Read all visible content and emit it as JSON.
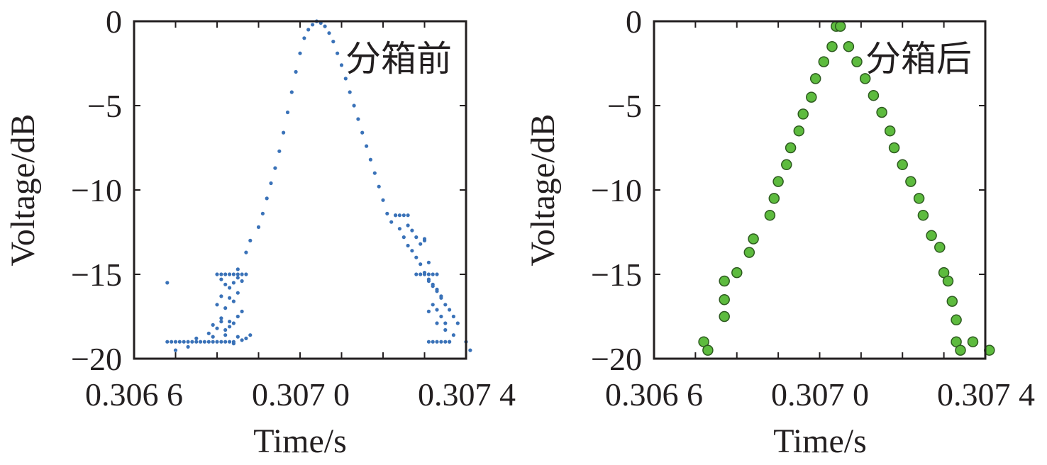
{
  "chart_data": [
    {
      "type": "scatter",
      "annotation": "分箱前",
      "xlabel": "Time/s",
      "ylabel": "Voltage/dB",
      "xlim": [
        0.30664,
        0.30742
      ],
      "ylim": [
        -20,
        0
      ],
      "xticks": [
        0.3066,
        0.307,
        0.3074
      ],
      "xtick_labels": [
        "0.306 6",
        "0.307 0",
        "0.307 4"
      ],
      "yticks": [
        0,
        -5,
        -10,
        -15,
        -20
      ],
      "ytick_labels": [
        "0",
        "−5",
        "−10",
        "−15",
        "−20"
      ],
      "grid": false,
      "marker_color": "#3a72b8",
      "series": [
        {
          "x": [
            0.30668,
            0.30669,
            0.3067,
            0.30671,
            0.30672,
            0.30673,
            0.30674,
            0.30675,
            0.30676,
            0.30677,
            0.30678,
            0.30679,
            0.3068,
            0.30681,
            0.30682,
            0.30683,
            0.30684,
            0.30668,
            0.3067,
            0.30673,
            0.30675,
            0.30678,
            0.30679,
            0.3068,
            0.30681,
            0.30682,
            0.30683,
            0.30684,
            0.30685,
            0.30686,
            0.30687,
            0.30688,
            0.3068,
            0.30681,
            0.30682,
            0.30683,
            0.30684,
            0.30685,
            0.30686,
            0.30687,
            0.30681,
            0.30682,
            0.30683,
            0.30684,
            0.30685,
            0.30686,
            0.30681,
            0.30683,
            0.30685,
            0.3068,
            0.30682,
            0.30684,
            0.30686,
            0.30681,
            0.30683,
            0.30685,
            0.30679,
            0.30682,
            0.30684,
            0.30685,
            0.30687,
            0.30688,
            0.3069,
            0.30691,
            0.30692,
            0.30693,
            0.30694,
            0.30695,
            0.30696,
            0.30697,
            0.30698,
            0.30699,
            0.307,
            0.30701,
            0.30702,
            0.30703,
            0.30704,
            0.30705,
            0.30706,
            0.30707,
            0.30708,
            0.30709,
            0.3071,
            0.30711,
            0.30712,
            0.30713,
            0.30714,
            0.30715,
            0.30716,
            0.30717,
            0.30718,
            0.30719,
            0.3072,
            0.30721,
            0.30722,
            0.30723,
            0.30724,
            0.30725,
            0.30726,
            0.30727,
            0.30728,
            0.30729,
            0.3073,
            0.30731,
            0.30732,
            0.30733,
            0.30734,
            0.30735,
            0.30736,
            0.30737,
            0.30738,
            0.30723,
            0.30724,
            0.30725,
            0.30726,
            0.30726,
            0.30727,
            0.30728,
            0.30729,
            0.3073,
            0.3073,
            0.30731,
            0.30728,
            0.30729,
            0.3073,
            0.30731,
            0.30732,
            0.30733,
            0.30731,
            0.30732,
            0.30733,
            0.30734,
            0.30732,
            0.30733,
            0.30734,
            0.30735,
            0.30731,
            0.30733,
            0.30735,
            0.30737,
            0.30732,
            0.30734,
            0.30736,
            0.30731,
            0.30733,
            0.30735,
            0.30736,
            0.3074,
            0.30741
          ],
          "y": [
            -19.0,
            -19.0,
            -19.0,
            -19.0,
            -19.0,
            -19.0,
            -19.0,
            -19.0,
            -19.0,
            -19.0,
            -19.0,
            -19.0,
            -19.0,
            -19.0,
            -19.0,
            -19.0,
            -19.0,
            -15.5,
            -19.5,
            -19.3,
            -18.8,
            -18.5,
            -18.7,
            -18.2,
            -17.8,
            -18.6,
            -18.1,
            -19.1,
            -18.7,
            -18.9,
            -18.8,
            -18.6,
            -15.0,
            -15.0,
            -15.0,
            -15.0,
            -15.0,
            -15.0,
            -15.0,
            -15.0,
            -15.3,
            -15.6,
            -15.8,
            -15.5,
            -15.2,
            -15.4,
            -16.3,
            -16.4,
            -16.1,
            -16.8,
            -17.0,
            -16.6,
            -17.2,
            -17.6,
            -17.8,
            -17.5,
            -18.0,
            -18.3,
            -17.9,
            -14.7,
            -13.7,
            -13.0,
            -12.2,
            -11.4,
            -10.5,
            -9.6,
            -8.7,
            -7.7,
            -6.6,
            -5.4,
            -4.2,
            -3.0,
            -1.9,
            -1.0,
            -0.5,
            -0.2,
            -0.0,
            -0.1,
            -0.3,
            -0.7,
            -1.2,
            -1.9,
            -2.6,
            -3.4,
            -4.2,
            -5.0,
            -5.8,
            -6.6,
            -7.4,
            -8.2,
            -9.0,
            -9.8,
            -10.6,
            -11.4,
            -11.9,
            -11.5,
            -12.3,
            -12.8,
            -13.3,
            -13.6,
            -14.0,
            -14.4,
            -14.9,
            -15.3,
            -15.6,
            -16.0,
            -16.4,
            -16.8,
            -17.1,
            -17.5,
            -17.9,
            -11.5,
            -11.5,
            -11.5,
            -11.5,
            -12.1,
            -12.4,
            -12.8,
            -13.2,
            -12.9,
            -13.0,
            -14.3,
            -15.0,
            -15.0,
            -15.0,
            -15.0,
            -15.0,
            -15.0,
            -15.4,
            -15.7,
            -15.9,
            -16.3,
            -16.8,
            -17.1,
            -17.5,
            -17.9,
            -17.2,
            -17.9,
            -18.3,
            -18.6,
            -19.0,
            -19.0,
            -19.0,
            -19.0,
            -19.0,
            -19.0,
            -19.0,
            -19.0,
            -19.5
          ]
        }
      ]
    },
    {
      "type": "scatter",
      "annotation": "分箱后",
      "xlabel": "Time/s",
      "ylabel": "Voltage/dB",
      "xlim": [
        0.30664,
        0.30742
      ],
      "ylim": [
        -20,
        0
      ],
      "xticks": [
        0.3066,
        0.307,
        0.3074
      ],
      "xtick_labels": [
        "0.306 6",
        "0.307 0",
        "0.307 4"
      ],
      "yticks": [
        0,
        -5,
        -10,
        -15,
        -20
      ],
      "ytick_labels": [
        "0",
        "−5",
        "−10",
        "−15",
        "−20"
      ],
      "grid": false,
      "marker_color": "#5dbb3e",
      "marker_edge": "#2d5a1f",
      "series": [
        {
          "x": [
            0.30672,
            0.30673,
            0.30677,
            0.30677,
            0.30677,
            0.3068,
            0.30683,
            0.30684,
            0.30688,
            0.30689,
            0.3069,
            0.30692,
            0.30693,
            0.30695,
            0.30696,
            0.30698,
            0.30699,
            0.30701,
            0.30703,
            0.30704,
            0.30705,
            0.30707,
            0.30709,
            0.30711,
            0.30713,
            0.30715,
            0.30717,
            0.30718,
            0.3072,
            0.30722,
            0.30724,
            0.30725,
            0.30727,
            0.30729,
            0.3073,
            0.30731,
            0.30732,
            0.30733,
            0.30733,
            0.30734,
            0.30737,
            0.30741
          ],
          "y": [
            -19.0,
            -19.5,
            -17.5,
            -16.5,
            -15.4,
            -14.9,
            -13.7,
            -12.9,
            -11.5,
            -10.5,
            -9.5,
            -8.5,
            -7.5,
            -6.5,
            -5.5,
            -4.5,
            -3.4,
            -2.4,
            -1.5,
            -0.3,
            -0.3,
            -1.5,
            -2.4,
            -3.4,
            -4.4,
            -5.4,
            -6.5,
            -7.5,
            -8.5,
            -9.5,
            -10.5,
            -11.5,
            -12.7,
            -13.4,
            -14.9,
            -15.4,
            -16.6,
            -17.7,
            -19.0,
            -19.5,
            -19.0,
            -19.5
          ]
        }
      ]
    }
  ]
}
